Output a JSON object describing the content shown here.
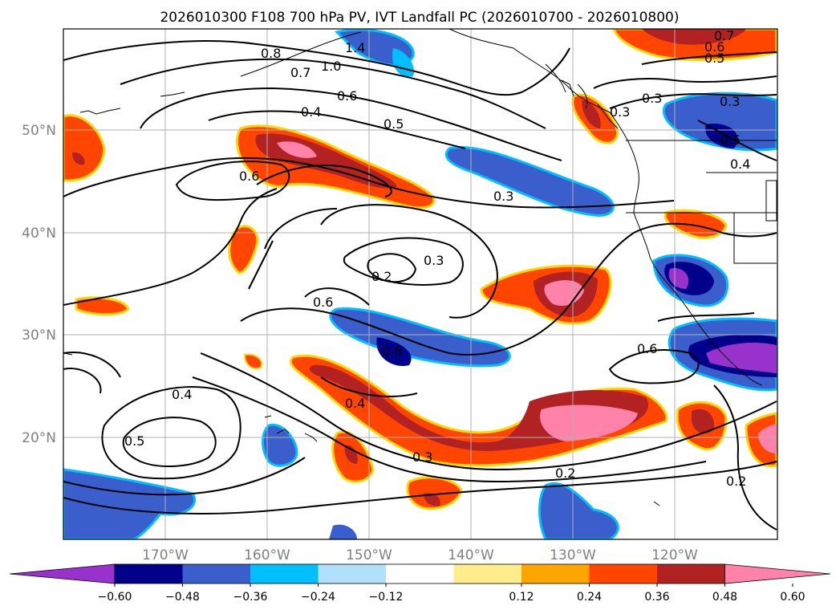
{
  "title": "2026010300 F108 700 hPa PV, IVT Landfall PC (2026010700 - 2026010800)",
  "map": {
    "lon_range": [
      -180,
      -110
    ],
    "lat_range": [
      10,
      60
    ],
    "lat_ticks": [
      "50°N",
      "40°N",
      "30°N",
      "20°N"
    ],
    "lon_ticks": [
      "170°W",
      "160°W",
      "150°W",
      "140°W",
      "130°W",
      "120°W"
    ],
    "grid": true
  },
  "colorbar": {
    "tick_labels": [
      "-0.60",
      "-0.48",
      "-0.36",
      "-0.24",
      "-0.12",
      "0.12",
      "0.24",
      "0.36",
      "0.48",
      "0.60"
    ],
    "colors": [
      "#9932cc",
      "#00008b",
      "#3a5fcd",
      "#00bfff",
      "#b0e0fa",
      "#ffffff",
      "#ffec8b",
      "#ffa500",
      "#ff4500",
      "#b22222",
      "#ff82ab"
    ],
    "extend": "both"
  },
  "contour_labels": [
    "1.4",
    "0.8",
    "0.7",
    "1.0",
    "0.6",
    "0.4",
    "0.5",
    "0.6",
    "0.3",
    "0.2",
    "0.3",
    "0.6",
    "0.6",
    "0.4",
    "0.5",
    "0.4",
    "0.3",
    "0.2",
    "0.6",
    "0.2",
    "0.3",
    "0.3",
    "0.7",
    "0.6",
    "0.5",
    "0.3",
    "0.4",
    "0.5"
  ],
  "colors": {
    "land_outline": "#000000",
    "grid": "#b0b0b0",
    "contour": "#000000"
  }
}
